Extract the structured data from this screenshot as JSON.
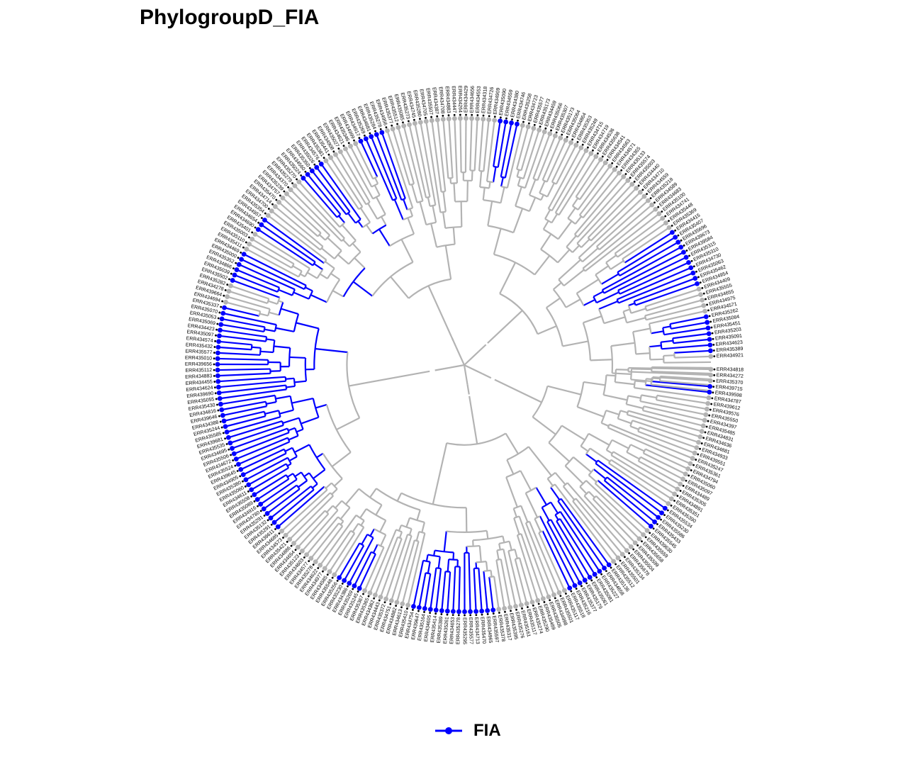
{
  "title": "PhylogroupD_FIA",
  "legend": {
    "label": "FIA",
    "color": "#0000ff"
  },
  "colors": {
    "branch_default": "#b3b3b3",
    "branch_highlight": "#0000ff",
    "tip_point": "#b3b3b3",
    "label": "#000000"
  },
  "tree": {
    "layout": "circular",
    "tip_labels": [
      "ERR434818",
      "ERR434272",
      "ERR435370",
      "ERR439715",
      "ERR439598",
      "ERR434787",
      "ERR439612",
      "ERR439576",
      "ERR435550",
      "ERR434397",
      "ERR435485",
      "ERR434831",
      "ERR434636",
      "ERR434881",
      "ERR434933",
      "ERR439551",
      "ERR435247",
      "ERR435361",
      "ERR434794",
      "ERR435060",
      "ERR435097",
      "ERR434489",
      "ERR435305",
      "ERR434891",
      "ERR435351",
      "ERR435390",
      "ERR435534",
      "ERR435230",
      "ERR435586",
      "ERR435433",
      "ERR435545",
      "ERR439630",
      "ERR435559",
      "ERR435658",
      "ERR435599",
      "ERR435504",
      "ERR435678",
      "ERR435134",
      "ERR435501",
      "ERR435512",
      "ERR435136",
      "ERR434658",
      "ERR435227",
      "ERR435081",
      "ERR435061",
      "ERR435179",
      "ERR435377",
      "ERR435216",
      "ERR435518",
      "ERR435117",
      "ERR435501",
      "ERR434998",
      "ERR435505",
      "ERR435469",
      "ERR435290",
      "ERR435274",
      "ERR435117",
      "ERR435161",
      "ERR435276",
      "ERR435395",
      "ERR435317",
      "ERR435378",
      "ERR435597",
      "ERR434965",
      "ERR435470",
      "ERR434713",
      "ERR435577",
      "ERR435295",
      "ERR435278",
      "ERR434653",
      "ERR435261",
      "ERR435389",
      "ERR435414",
      "ERR434605",
      "ERR435164",
      "ERR439647",
      "ERR434754",
      "ERR435410",
      "ERR434613",
      "ERR434882",
      "ERR434751",
      "ERR435372",
      "ERR434443",
      "ERR434362",
      "ERR435365",
      "ERR435367",
      "ERR435245",
      "ERR435269",
      "ERR434386",
      "ERR435230",
      "ERR435256",
      "ERR435548",
      "ERR434585",
      "ERR434977",
      "ERR434622",
      "ERR435278",
      "ERR434577",
      "ERR434603",
      "ERR435123",
      "ERR434654",
      "ERR434886",
      "ERR435421",
      "ERR434573",
      "ERR434685",
      "ERR439611",
      "ERR435291",
      "ERR435132",
      "ERR435291",
      "ERR434780",
      "ERR434916",
      "ERR435089",
      "ERR435508",
      "ERR434611",
      "ERR435060",
      "ERR435380",
      "ERR434905",
      "ERR439645",
      "ERR435524",
      "ERR434672",
      "ERR435506",
      "ERR434695",
      "ERR435535",
      "ERR439681",
      "ERR435585",
      "ERR435244",
      "ERR434388",
      "ERR439646",
      "ERR434816",
      "ERR435430",
      "ERR435055",
      "ERR439690",
      "ERR434624",
      "ERR434455",
      "ERR434883",
      "ERR435112",
      "ERR439656",
      "ERR435010",
      "ERR435577",
      "ERR435432",
      "ERR434574",
      "ERR435097",
      "ERR434423",
      "ERR435069",
      "ERR435053",
      "ERR435070",
      "ERR435337",
      "ERR434694",
      "ERR439664",
      "ERR434278",
      "ERR435282",
      "ERR435502",
      "ERR435039",
      "ERR434866",
      "ERR435352",
      "ERR435000",
      "ERR434469",
      "ERR435411",
      "ERR435110",
      "ERR435003",
      "ERR435401",
      "ERR434690",
      "ERR434654",
      "ERR434957",
      "ERR435354",
      "ERR434700",
      "ERR434714",
      "ERR435470",
      "ERR434757",
      "ERR435239",
      "ERR434370",
      "ERR435279",
      "ERR435270",
      "ERR435024",
      "ERR434560",
      "ERR435350",
      "ERR435026",
      "ERR434576",
      "ERR435381",
      "ERR435441",
      "ERR434908",
      "ERR435027",
      "ERR434621",
      "ERR435346",
      "ERR434999",
      "ERR434917",
      "ERR435269",
      "ERR434681",
      "ERR435284",
      "ERR435278",
      "ERR434956",
      "ERR435377",
      "ERR435512",
      "ERR435085",
      "ERR435273",
      "ERR434745",
      "ERR435280",
      "ERR434705",
      "ERR435507",
      "ERR434387",
      "ERR434708",
      "ERR434883",
      "ERR434447",
      "ERR434264",
      "ERR434429",
      "ERR434656",
      "ERR434553",
      "ERR434318",
      "ERR434726",
      "ERR434909",
      "ERR435090",
      "ERR434559",
      "ERR434380",
      "ERR434746",
      "ERR435258",
      "ERR434723",
      "ERR435577",
      "ERR435173",
      "ERR434459",
      "ERR435066",
      "ERR435307",
      "ERR435173",
      "ERR435064",
      "ERR434864",
      "ERR435353",
      "ERR435249",
      "ERR434715",
      "ERR434719",
      "ERR434536",
      "ERR435638",
      "ERR434541",
      "ERR434563",
      "ERR434571",
      "ERR434365",
      "ERR435133",
      "ERR435574",
      "ERR435003",
      "ERR434440",
      "ERR434710",
      "ERR434559",
      "ERR435218",
      "ERR434589",
      "ERR434683",
      "ERR435100",
      "ERR434741",
      "ERR435448",
      "ERR435369",
      "ERR434415",
      "ERR435407",
      "ERR435696",
      "ERR439673",
      "ERR439584",
      "ERR435315",
      "ERR435310",
      "ERR434730",
      "ERR435063",
      "ERR435462",
      "ERR434954",
      "ERR434409",
      "ERR435555",
      "ERR434655",
      "ERR434975",
      "ERR434571",
      "ERR435262",
      "ERR435084",
      "ERR435451",
      "ERR435203",
      "ERR435091",
      "ERR434623",
      "ERR435389",
      "ERR434921"
    ],
    "highlighted_trait": "FIA"
  }
}
